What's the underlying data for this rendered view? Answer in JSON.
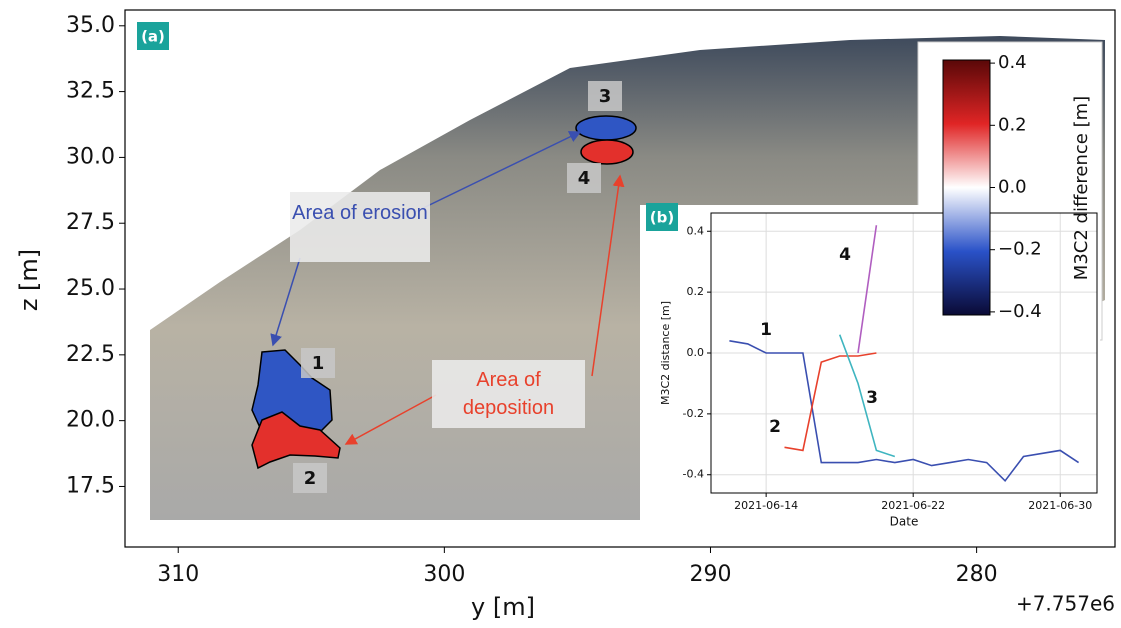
{
  "chart_data": [
    {
      "type": "point-cloud",
      "panel_label": "(a)",
      "xlabel": "y [m]",
      "ylabel": "z [m]",
      "x_offset_label": "+7.757e6",
      "xlim": [
        312,
        274.8
      ],
      "xticks": [
        310,
        300,
        290,
        280
      ],
      "ylim": [
        15.2,
        35.6
      ],
      "yticks": [
        17.5,
        {
          "value": 20,
          "label": "20.0"
        },
        22.5,
        {
          "value": 25,
          "label": "25.0"
        },
        27.5,
        {
          "value": 30,
          "label": "30.0"
        },
        32.5,
        {
          "value": 35,
          "label": "35.0"
        }
      ],
      "annotations": [
        "Area of erosion",
        "Area of deposition"
      ],
      "region_labels": [
        "1",
        "2",
        "3",
        "4"
      ]
    },
    {
      "type": "colorbar",
      "ylabel": "M3C2 difference [m]",
      "ylim": [
        -0.41,
        0.41
      ],
      "yticks": [
        {
          "value": -0.4,
          "label": "−0.4"
        },
        {
          "value": -0.2,
          "label": "−0.2"
        },
        {
          "value": 0,
          "label": "0.0"
        },
        0.2,
        0.4
      ],
      "colors": [
        "#0a0a35",
        "#2a52c8",
        "#ffffff",
        "#e02525",
        "#5a0808"
      ]
    },
    {
      "type": "line",
      "panel_label": "(b)",
      "xlabel": "Date",
      "ylabel": "M3C2 distance [m]",
      "x": [
        "2021-06-12",
        "2021-06-13",
        "2021-06-14",
        "2021-06-15",
        "2021-06-16",
        "2021-06-17",
        "2021-06-18",
        "2021-06-19",
        "2021-06-20",
        "2021-06-21",
        "2021-06-22",
        "2021-06-23",
        "2021-06-24",
        "2021-06-25",
        "2021-06-26",
        "2021-06-27",
        "2021-06-28",
        "2021-06-29",
        "2021-06-30",
        "2021-07-01"
      ],
      "xlim": [
        "2021-06-11",
        "2021-07-02"
      ],
      "xticks": [
        "2021-06-14",
        "2021-06-22",
        "2021-06-30"
      ],
      "ylim": [
        -0.46,
        0.46
      ],
      "yticks": [
        -0.4,
        -0.2,
        {
          "value": 0,
          "label": "0.0"
        },
        0.2,
        0.4
      ],
      "grid": true,
      "series": [
        {
          "name": "1",
          "color": "#3a4fb0",
          "values": [
            0.04,
            0.03,
            0.0,
            0.0,
            0.0,
            -0.36,
            -0.36,
            -0.36,
            -0.35,
            -0.36,
            -0.35,
            -0.37,
            -0.36,
            -0.35,
            -0.36,
            -0.42,
            -0.34,
            -0.33,
            -0.32,
            -0.36
          ]
        },
        {
          "name": "2",
          "color": "#e8412c",
          "values": [
            null,
            null,
            null,
            -0.31,
            -0.32,
            -0.03,
            -0.01,
            -0.01,
            0.0,
            null,
            null,
            null,
            null,
            null,
            null,
            null,
            null,
            null,
            null,
            null
          ]
        },
        {
          "name": "3",
          "color": "#3fb5c0",
          "values": [
            null,
            null,
            null,
            null,
            null,
            null,
            0.06,
            -0.1,
            -0.32,
            -0.34,
            null,
            null,
            null,
            null,
            null,
            null,
            null,
            null,
            null,
            null
          ]
        },
        {
          "name": "4",
          "color": "#b05ec0",
          "values": [
            null,
            null,
            null,
            null,
            null,
            null,
            null,
            0.0,
            0.42,
            null,
            null,
            null,
            null,
            null,
            null,
            null,
            null,
            null,
            null,
            null
          ]
        }
      ]
    }
  ]
}
